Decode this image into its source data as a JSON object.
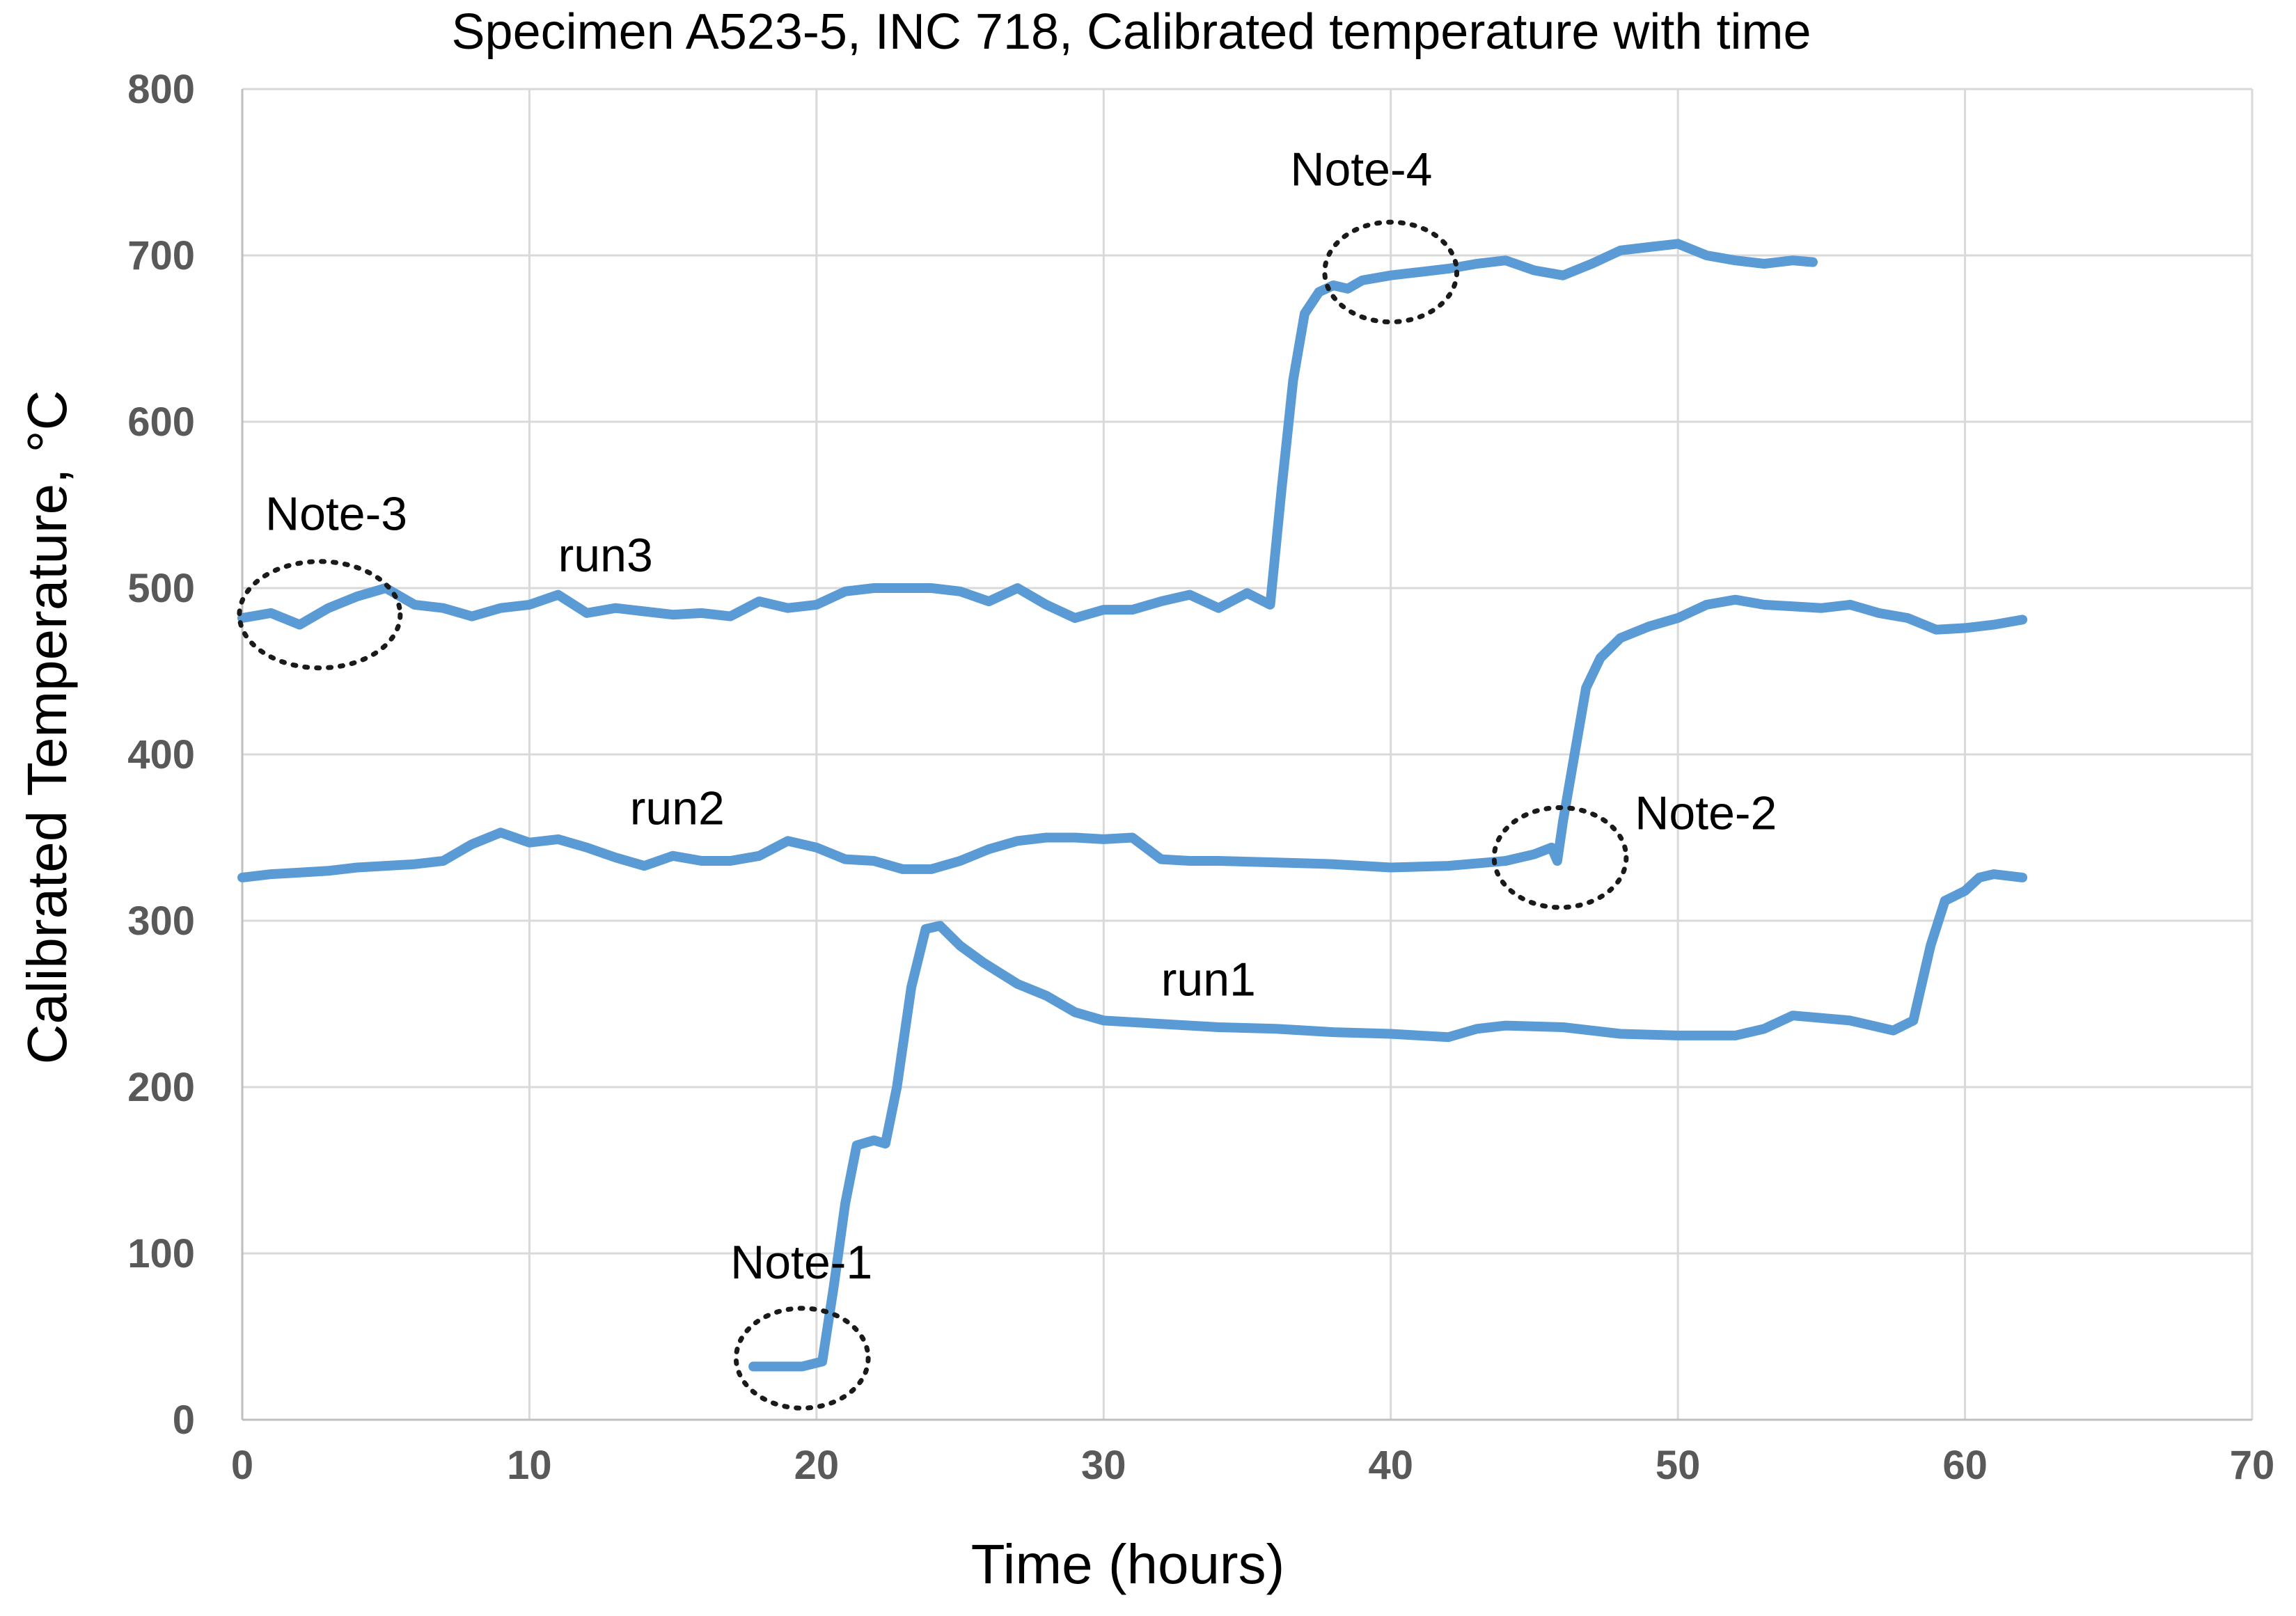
{
  "chart_data": {
    "type": "line",
    "title": "Specimen A523-5, INC 718, Calibrated temperature with time",
    "xlabel": "Time (hours)",
    "ylabel": "Calibrated Temperature, °C",
    "xlim": [
      0,
      70
    ],
    "ylim": [
      0,
      800
    ],
    "xticks": [
      "0",
      "10",
      "20",
      "30",
      "40",
      "50",
      "60",
      "70"
    ],
    "yticks": [
      "0",
      "100",
      "200",
      "300",
      "400",
      "500",
      "600",
      "700",
      "800"
    ],
    "grid": true,
    "line_color": "#5B9BD5",
    "series": [
      {
        "label": "run1",
        "x": [
          17.8,
          19.5,
          20.2,
          20.6,
          21.0,
          21.4,
          22.0,
          22.4,
          22.8,
          23.3,
          23.8,
          24.3,
          25.0,
          25.8,
          27.0,
          28.0,
          29.0,
          30.0,
          32.0,
          34.0,
          36.0,
          38.0,
          40.0,
          42.0,
          43.0,
          44.0,
          46.0,
          48.0,
          50.0,
          52.0,
          53.0,
          54.0,
          56.0,
          57.5,
          58.2,
          58.8,
          59.3,
          60.0,
          60.5,
          61.0,
          62.0
        ],
        "y": [
          32,
          32,
          35,
          80,
          130,
          165,
          168,
          166,
          200,
          260,
          295,
          297,
          285,
          275,
          262,
          255,
          245,
          240,
          238,
          236,
          235,
          233,
          232,
          230,
          235,
          237,
          236,
          232,
          231,
          231,
          235,
          243,
          240,
          234,
          240,
          285,
          312,
          318,
          326,
          328,
          326
        ]
      },
      {
        "label": "run2",
        "x": [
          0,
          1,
          2,
          3,
          4,
          5,
          6,
          7,
          8,
          9,
          10,
          11,
          12,
          13,
          14,
          15,
          16,
          17,
          18,
          19,
          20,
          21,
          22,
          23,
          24,
          25,
          26,
          27,
          28,
          29,
          30,
          31,
          32,
          33,
          34,
          36,
          38,
          40,
          42,
          44,
          45,
          45.6,
          45.8,
          46.0,
          46.4,
          46.8,
          47.3,
          48.0,
          49.0,
          50.0,
          51.0,
          52.0,
          53.0,
          54.0,
          55.0,
          56.0,
          57.0,
          58.0,
          59.0,
          60.0,
          61.0,
          62.0
        ],
        "y": [
          326,
          328,
          329,
          330,
          332,
          333,
          334,
          336,
          346,
          353,
          347,
          349,
          344,
          338,
          333,
          339,
          336,
          336,
          339,
          348,
          344,
          337,
          336,
          331,
          331,
          336,
          343,
          348,
          350,
          350,
          349,
          350,
          337,
          336,
          336,
          335,
          334,
          332,
          333,
          336,
          340,
          344,
          336,
          360,
          400,
          440,
          458,
          470,
          477,
          482,
          490,
          493,
          490,
          489,
          488,
          490,
          485,
          482,
          475,
          476,
          478,
          481
        ]
      },
      {
        "label": "run3",
        "x": [
          0,
          1,
          2,
          3,
          4,
          5,
          6,
          7,
          8,
          9,
          10,
          11,
          12,
          13,
          14,
          15,
          16,
          17,
          18,
          19,
          20,
          21,
          22,
          23,
          24,
          25,
          26,
          27,
          28,
          29,
          30,
          31,
          32,
          33,
          34,
          35,
          35.8,
          36.2,
          36.6,
          37.0,
          37.5,
          38.0,
          38.5,
          39.0,
          40.0,
          41.0,
          42.0,
          43.0,
          44.0,
          45.0,
          46.0,
          47.0,
          48.0,
          49.0,
          50.0,
          51.0,
          52.0,
          53.0,
          54.0,
          54.7
        ],
        "y": [
          482,
          485,
          478,
          488,
          495,
          500,
          490,
          488,
          483,
          488,
          490,
          496,
          485,
          488,
          486,
          484,
          485,
          483,
          492,
          488,
          490,
          498,
          500,
          500,
          500,
          498,
          492,
          500,
          490,
          482,
          487,
          487,
          492,
          496,
          488,
          497,
          490,
          560,
          625,
          665,
          678,
          682,
          680,
          685,
          688,
          690,
          692,
          695,
          697,
          691,
          688,
          695,
          703,
          705,
          707,
          700,
          697,
          695,
          697,
          696
        ]
      }
    ],
    "annotations": [
      {
        "text": "Note-1",
        "x": 17,
        "y": 85
      },
      {
        "text": "Note-2",
        "x": 48.5,
        "y": 355
      },
      {
        "text": "Note-3",
        "x": 0.8,
        "y": 535
      },
      {
        "text": "Note-4",
        "x": 36.5,
        "y": 742
      },
      {
        "text": "run1",
        "x": 32,
        "y": 255
      },
      {
        "text": "run2",
        "x": 13.5,
        "y": 358
      },
      {
        "text": "run3",
        "x": 11,
        "y": 510
      }
    ],
    "circles": [
      {
        "x": 19.5,
        "y": 37,
        "rx": 2.3,
        "ry": 30
      },
      {
        "x": 45.9,
        "y": 338,
        "rx": 2.3,
        "ry": 30
      },
      {
        "x": 2.7,
        "y": 484,
        "rx": 2.8,
        "ry": 32
      },
      {
        "x": 40.0,
        "y": 690,
        "rx": 2.3,
        "ry": 30
      }
    ]
  }
}
